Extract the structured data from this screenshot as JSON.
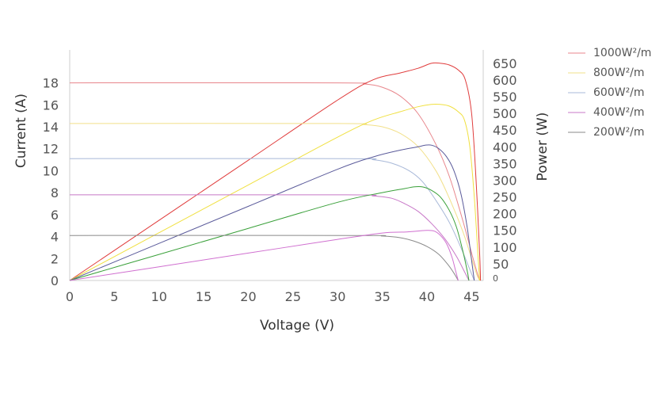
{
  "chart_data": {
    "type": "line",
    "xlabel": "Voltage (V)",
    "ylabel_left": "Current (A)",
    "ylabel_right": "Power (W)",
    "xlim": [
      0,
      46.3
    ],
    "ylim_left": [
      0,
      21
    ],
    "ylim_right": [
      0,
      690
    ],
    "x_ticks": [
      "0",
      "5",
      "10",
      "15",
      "20",
      "25",
      "30",
      "35",
      "40",
      "45"
    ],
    "y_ticks_left": [
      "0",
      "2",
      "4",
      "6",
      "8",
      "10",
      "12",
      "14",
      "16",
      "18"
    ],
    "y_ticks_right": [
      "0",
      "50",
      "100",
      "150",
      "200",
      "250",
      "300",
      "350",
      "400",
      "450",
      "500",
      "550",
      "600",
      "650"
    ],
    "grid": false,
    "legend_position": "top-right",
    "series": [
      {
        "name": "1000W²/m",
        "color": "#e8868c",
        "power_color": "#e03c3c",
        "iv": [
          [
            0,
            18
          ],
          [
            30,
            18
          ],
          [
            33,
            17.9
          ],
          [
            35,
            17.6
          ],
          [
            37,
            16.8
          ],
          [
            39,
            15.2
          ],
          [
            41,
            12.4
          ],
          [
            42.5,
            9.5
          ],
          [
            44,
            5.5
          ],
          [
            45,
            2.5
          ],
          [
            45.7,
            0.5
          ],
          [
            46,
            0
          ]
        ],
        "pv": [
          [
            0,
            0
          ],
          [
            10,
            180
          ],
          [
            20,
            360
          ],
          [
            30,
            540
          ],
          [
            34,
            601
          ],
          [
            37,
            621
          ],
          [
            39,
            635
          ],
          [
            40.5,
            650
          ],
          [
            41.5,
            650
          ],
          [
            42.5,
            645
          ],
          [
            43.5,
            630
          ],
          [
            44.3,
            600
          ],
          [
            45,
            500
          ],
          [
            45.5,
            300
          ],
          [
            45.9,
            80
          ],
          [
            46,
            0
          ]
        ]
      },
      {
        "name": "800W²/m",
        "color": "#f2e08a",
        "power_color": "#f0e040",
        "iv": [
          [
            0,
            14.3
          ],
          [
            30,
            14.3
          ],
          [
            33,
            14.2
          ],
          [
            35,
            14
          ],
          [
            37,
            13.4
          ],
          [
            39,
            12.2
          ],
          [
            41,
            10
          ],
          [
            42.5,
            7.5
          ],
          [
            44,
            4.5
          ],
          [
            45,
            2
          ],
          [
            45.6,
            0.5
          ],
          [
            45.9,
            0
          ]
        ],
        "pv": [
          [
            0,
            0
          ],
          [
            10,
            143
          ],
          [
            20,
            286
          ],
          [
            30,
            429
          ],
          [
            34,
            480
          ],
          [
            37,
            505
          ],
          [
            39,
            520
          ],
          [
            40.5,
            527
          ],
          [
            41.5,
            527
          ],
          [
            42.5,
            522
          ],
          [
            43.5,
            505
          ],
          [
            44.2,
            480
          ],
          [
            44.8,
            400
          ],
          [
            45.3,
            250
          ],
          [
            45.7,
            80
          ],
          [
            45.9,
            0
          ]
        ]
      },
      {
        "name": "600W²/m",
        "color": "#a8b8d8",
        "power_color": "#5a5a9a",
        "iv": [
          [
            0,
            11.1
          ],
          [
            31,
            11.1
          ],
          [
            34,
            11
          ],
          [
            36,
            10.7
          ],
          [
            38,
            10
          ],
          [
            39.5,
            9
          ],
          [
            41,
            7.3
          ],
          [
            42.5,
            5.3
          ],
          [
            43.8,
            3
          ],
          [
            44.8,
            1
          ],
          [
            45.3,
            0
          ]
        ],
        "pv": [
          [
            0,
            0
          ],
          [
            10,
            111
          ],
          [
            20,
            222
          ],
          [
            30,
            333
          ],
          [
            34,
            370
          ],
          [
            37,
            390
          ],
          [
            39,
            400
          ],
          [
            39.8,
            405
          ],
          [
            40.5,
            405
          ],
          [
            41.3,
            395
          ],
          [
            42.2,
            370
          ],
          [
            43,
            330
          ],
          [
            43.8,
            260
          ],
          [
            44.5,
            160
          ],
          [
            45,
            60
          ],
          [
            45.3,
            0
          ]
        ]
      },
      {
        "name": "400W²/m",
        "color": "#c878c8",
        "power_color": "#3aa03a",
        "iv": [
          [
            0,
            7.8
          ],
          [
            31,
            7.8
          ],
          [
            34,
            7.7
          ],
          [
            36,
            7.5
          ],
          [
            37.5,
            7
          ],
          [
            39,
            6.3
          ],
          [
            40.5,
            5.2
          ],
          [
            42,
            3.8
          ],
          [
            43.3,
            2.2
          ],
          [
            44.2,
            0.8
          ],
          [
            44.7,
            0
          ]
        ],
        "pv": [
          [
            0,
            0
          ],
          [
            10,
            78
          ],
          [
            20,
            156
          ],
          [
            30,
            234
          ],
          [
            35,
            263
          ],
          [
            37.5,
            275
          ],
          [
            38.5,
            280
          ],
          [
            39.5,
            280
          ],
          [
            40.5,
            270
          ],
          [
            41.5,
            250
          ],
          [
            42.5,
            210
          ],
          [
            43.3,
            160
          ],
          [
            44,
            90
          ],
          [
            44.5,
            30
          ],
          [
            44.7,
            0
          ]
        ]
      },
      {
        "name": "200W²/m",
        "color": "#8a8a8a",
        "power_color": "#d070d0",
        "iv": [
          [
            0,
            4.1
          ],
          [
            32,
            4.1
          ],
          [
            35,
            4.05
          ],
          [
            37,
            3.9
          ],
          [
            38.5,
            3.6
          ],
          [
            40,
            3.1
          ],
          [
            41.3,
            2.4
          ],
          [
            42.3,
            1.5
          ],
          [
            43,
            0.7
          ],
          [
            43.5,
            0
          ]
        ],
        "pv": [
          [
            0,
            0
          ],
          [
            10,
            41
          ],
          [
            20,
            82
          ],
          [
            30,
            123
          ],
          [
            35,
            142
          ],
          [
            37.5,
            145
          ],
          [
            39,
            148
          ],
          [
            40,
            150
          ],
          [
            40.8,
            148
          ],
          [
            41.5,
            135
          ],
          [
            42.2,
            110
          ],
          [
            42.8,
            70
          ],
          [
            43.2,
            30
          ],
          [
            43.5,
            0
          ]
        ]
      }
    ]
  }
}
